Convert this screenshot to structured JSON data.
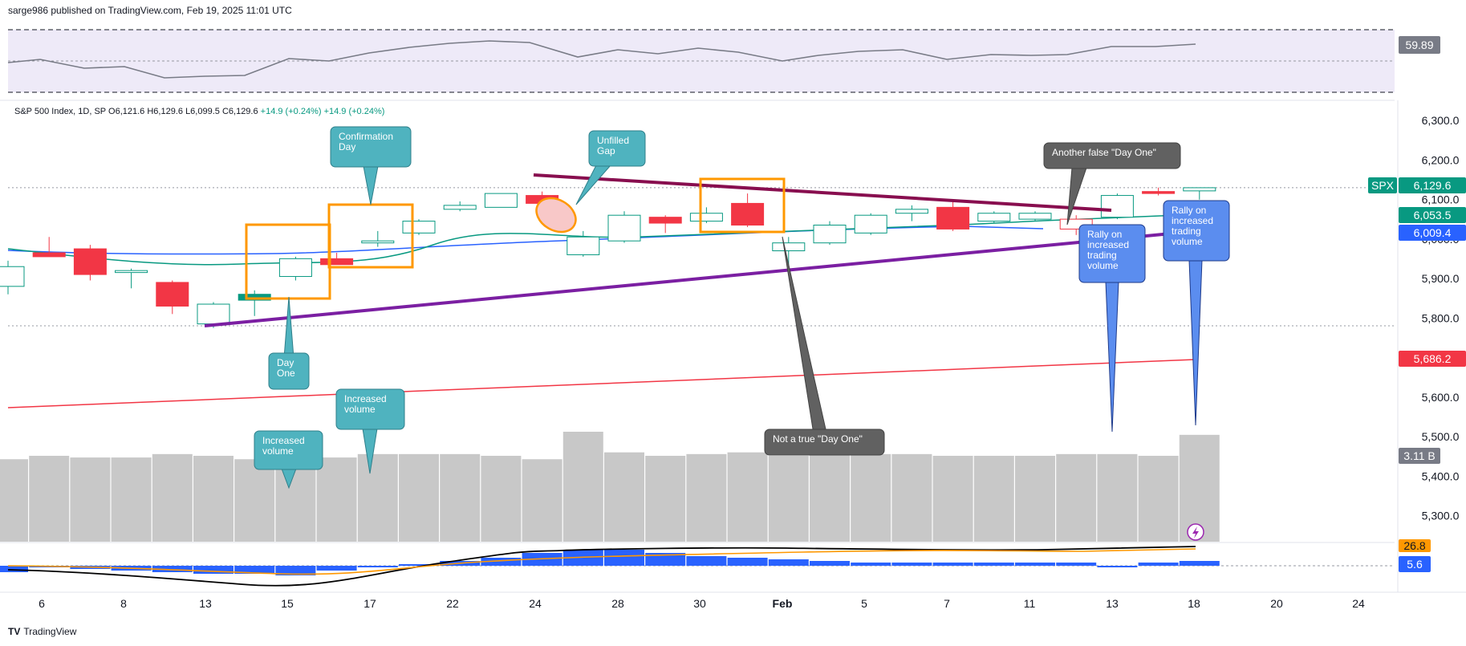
{
  "header": {
    "published": "sarge986 published on TradingView.com, Feb 19, 2025 11:01 UTC"
  },
  "legend": {
    "symbol": "S&P 500 Index, 1D, SP",
    "open": "O6,121.6",
    "high": "H6,129.6",
    "low": "L6,099.5",
    "close": "C6,129.6",
    "change1": "+14.9 (+0.24%)",
    "change2": "+14.9 (+0.24%)"
  },
  "footer": {
    "brand": "TradingView",
    "logo": "TV"
  },
  "colors": {
    "up": "#089981",
    "down": "#f23645",
    "ma20": "#089981",
    "ma50": "#2962ff",
    "ma200": "#f23645",
    "resistance": "#880e4f",
    "support": "#7b1fa2",
    "box": "#ff9800",
    "teal_callout": "#4fb3bf",
    "blue_callout": "#5b8def",
    "gray_callout": "#616161",
    "volume": "#c8c8c8",
    "macd_hist": "#2962ff"
  },
  "chart_data": {
    "type": "candlestick",
    "x_labels": [
      "6",
      "8",
      "13",
      "15",
      "17",
      "22",
      "24",
      "28",
      "30",
      "Feb",
      "5",
      "7",
      "11",
      "13",
      "18",
      "20",
      "24"
    ],
    "y_ticks": [
      "6,300.0",
      "6,200.0",
      "6,100.0",
      "6,000.0",
      "5,900.0",
      "5,800.0",
      "5,700.0",
      "5,600.0",
      "5,500.0",
      "5,400.0",
      "5,300.0"
    ],
    "y_range": [
      5260,
      6330
    ],
    "candles": [
      {
        "date": "2025-01-03",
        "o": 5880,
        "h": 5945,
        "l": 5860,
        "c": 5930
      },
      {
        "date": "2025-01-06",
        "o": 5965,
        "h": 6005,
        "l": 5955,
        "c": 5955
      },
      {
        "date": "2025-01-07",
        "o": 5975,
        "h": 5985,
        "l": 5895,
        "c": 5910
      },
      {
        "date": "2025-01-08",
        "o": 5915,
        "h": 5925,
        "l": 5875,
        "c": 5920
      },
      {
        "date": "2025-01-10",
        "o": 5890,
        "h": 5895,
        "l": 5810,
        "c": 5830
      },
      {
        "date": "2025-01-13",
        "o": 5785,
        "h": 5840,
        "l": 5775,
        "c": 5835
      },
      {
        "date": "2025-01-14",
        "o": 5845,
        "h": 5870,
        "l": 5805,
        "c": 5860
      },
      {
        "date": "2025-01-15",
        "o": 5905,
        "h": 5955,
        "l": 5895,
        "c": 5950
      },
      {
        "date": "2025-01-16",
        "o": 5950,
        "h": 5965,
        "l": 5935,
        "c": 5935
      },
      {
        "date": "2025-01-17",
        "o": 5990,
        "h": 6020,
        "l": 5980,
        "c": 5995
      },
      {
        "date": "2025-01-21",
        "o": 6015,
        "h": 6050,
        "l": 6010,
        "c": 6045
      },
      {
        "date": "2025-01-22",
        "o": 6075,
        "h": 6095,
        "l": 6070,
        "c": 6085
      },
      {
        "date": "2025-01-23",
        "o": 6080,
        "h": 6115,
        "l": 6080,
        "c": 6115
      },
      {
        "date": "2025-01-24",
        "o": 6110,
        "h": 6120,
        "l": 6085,
        "c": 6090
      },
      {
        "date": "2025-01-27",
        "o": 5960,
        "h": 6020,
        "l": 5955,
        "c": 6005
      },
      {
        "date": "2025-01-28",
        "o": 5995,
        "h": 6070,
        "l": 5990,
        "c": 6060
      },
      {
        "date": "2025-01-29",
        "o": 6055,
        "h": 6060,
        "l": 6015,
        "c": 6040
      },
      {
        "date": "2025-01-30",
        "o": 6045,
        "h": 6080,
        "l": 6040,
        "c": 6065
      },
      {
        "date": "2025-01-31",
        "o": 6090,
        "h": 6115,
        "l": 6030,
        "c": 6035
      },
      {
        "date": "2025-02-03",
        "o": 5970,
        "h": 6005,
        "l": 5925,
        "c": 5990
      },
      {
        "date": "2025-02-04",
        "o": 5990,
        "h": 6045,
        "l": 5985,
        "c": 6035
      },
      {
        "date": "2025-02-05",
        "o": 6015,
        "h": 6065,
        "l": 6010,
        "c": 6060
      },
      {
        "date": "2025-02-06",
        "o": 6065,
        "h": 6085,
        "l": 6045,
        "c": 6075
      },
      {
        "date": "2025-02-07",
        "o": 6080,
        "h": 6100,
        "l": 6020,
        "c": 6025
      },
      {
        "date": "2025-02-10",
        "o": 6045,
        "h": 6070,
        "l": 6040,
        "c": 6065
      },
      {
        "date": "2025-02-11",
        "o": 6050,
        "h": 6070,
        "l": 6045,
        "c": 6065
      },
      {
        "date": "2025-02-12",
        "o": 6050,
        "h": 6060,
        "l": 6010,
        "c": 6025
      },
      {
        "date": "2025-02-13",
        "o": 6055,
        "h": 6115,
        "l": 6050,
        "c": 6110
      },
      {
        "date": "2025-02-14",
        "o": 6120,
        "h": 6130,
        "l": 6110,
        "c": 6115
      },
      {
        "date": "2025-02-18",
        "o": 6121.6,
        "h": 6129.6,
        "l": 6099.5,
        "c": 6129.6
      }
    ],
    "volumes_billion": [
      2.4,
      2.5,
      2.45,
      2.45,
      2.55,
      2.5,
      2.4,
      2.45,
      2.45,
      2.55,
      2.55,
      2.55,
      2.5,
      2.4,
      3.2,
      2.6,
      2.5,
      2.55,
      2.6,
      2.5,
      2.55,
      2.55,
      2.55,
      2.5,
      2.5,
      2.5,
      2.55,
      2.55,
      2.5,
      3.11
    ],
    "price_labels": [
      {
        "text": "SPX",
        "value": "6,129.6"
      },
      {
        "text": "",
        "value": "6,053.5"
      },
      {
        "text": "",
        "value": "6,009.4"
      },
      {
        "text": "",
        "value": "5,686.2"
      }
    ],
    "rsi_value": "59.89",
    "volume_label": "3.11 B",
    "macd_labels": [
      "26.8",
      "5.6"
    ]
  },
  "annotations": {
    "confirmation_day": "Confirmation\nDay",
    "day_one": "Day\nOne",
    "unfilled_gap": "Unfilled\nGap",
    "increased_volume_1": "Increased\nvolume",
    "increased_volume_2": "Increased\nvolume",
    "another_false": "Another false \"Day One\"",
    "not_true": "Not a true \"Day One\"",
    "rally1": "Rally on\nincreased\ntrading\nvolume",
    "rally2": "Rally on\nincreased\ntrading\nvolume"
  }
}
